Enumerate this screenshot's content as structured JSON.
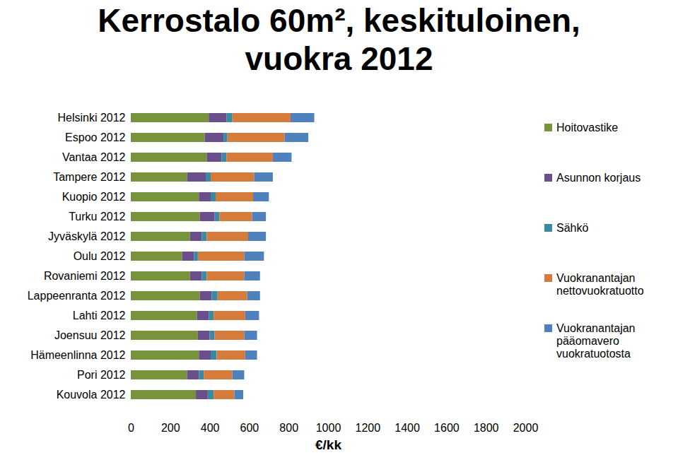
{
  "chart_data": {
    "type": "bar",
    "orientation": "horizontal",
    "stacked": true,
    "grid": false,
    "legend": "right",
    "title": "Kerrostalo 60m², keskituloinen, vuokra 2012",
    "xlabel": "€/kk",
    "categories": [
      "Helsinki 2012",
      "Espoo 2012",
      "Vantaa 2012",
      "Tampere 2012",
      "Kuopio 2012",
      "Turku 2012",
      "Jyväskylä 2012",
      "Oulu 2012",
      "Rovaniemi 2012",
      "Lappeenranta 2012",
      "Lahti 2012",
      "Joensuu 2012",
      "Hämeenlinna 2012",
      "Pori 2012",
      "Kouvola 2012"
    ],
    "series": [
      {
        "name": "Hoitovastike",
        "color": "#77933c",
        "values": [
          395,
          375,
          385,
          285,
          345,
          350,
          300,
          260,
          300,
          350,
          335,
          340,
          345,
          285,
          330
        ]
      },
      {
        "name": "Asunnon korjaus",
        "color": "#6a4f8a",
        "values": [
          90,
          95,
          75,
          95,
          60,
          75,
          60,
          60,
          60,
          60,
          60,
          60,
          60,
          60,
          60
        ]
      },
      {
        "name": "Sähkö",
        "color": "#3a8aa4",
        "values": [
          30,
          20,
          25,
          25,
          25,
          25,
          25,
          20,
          25,
          30,
          25,
          25,
          30,
          25,
          30
        ]
      },
      {
        "name": "Vuokranantajan nettovuokratuotto",
        "color": "#d57b3b",
        "values": [
          295,
          290,
          235,
          220,
          190,
          165,
          210,
          235,
          190,
          150,
          160,
          150,
          145,
          145,
          105
        ]
      },
      {
        "name": "Vuokranantajan pääomavero vuokratuotosta",
        "color": "#4f81bd",
        "values": [
          120,
          120,
          95,
          95,
          80,
          70,
          90,
          100,
          80,
          65,
          70,
          65,
          60,
          60,
          45
        ]
      }
    ],
    "xlim": [
      0,
      2000
    ],
    "xticks": [
      0,
      200,
      400,
      600,
      800,
      1000,
      1200,
      1400,
      1600,
      1800,
      2000
    ]
  }
}
